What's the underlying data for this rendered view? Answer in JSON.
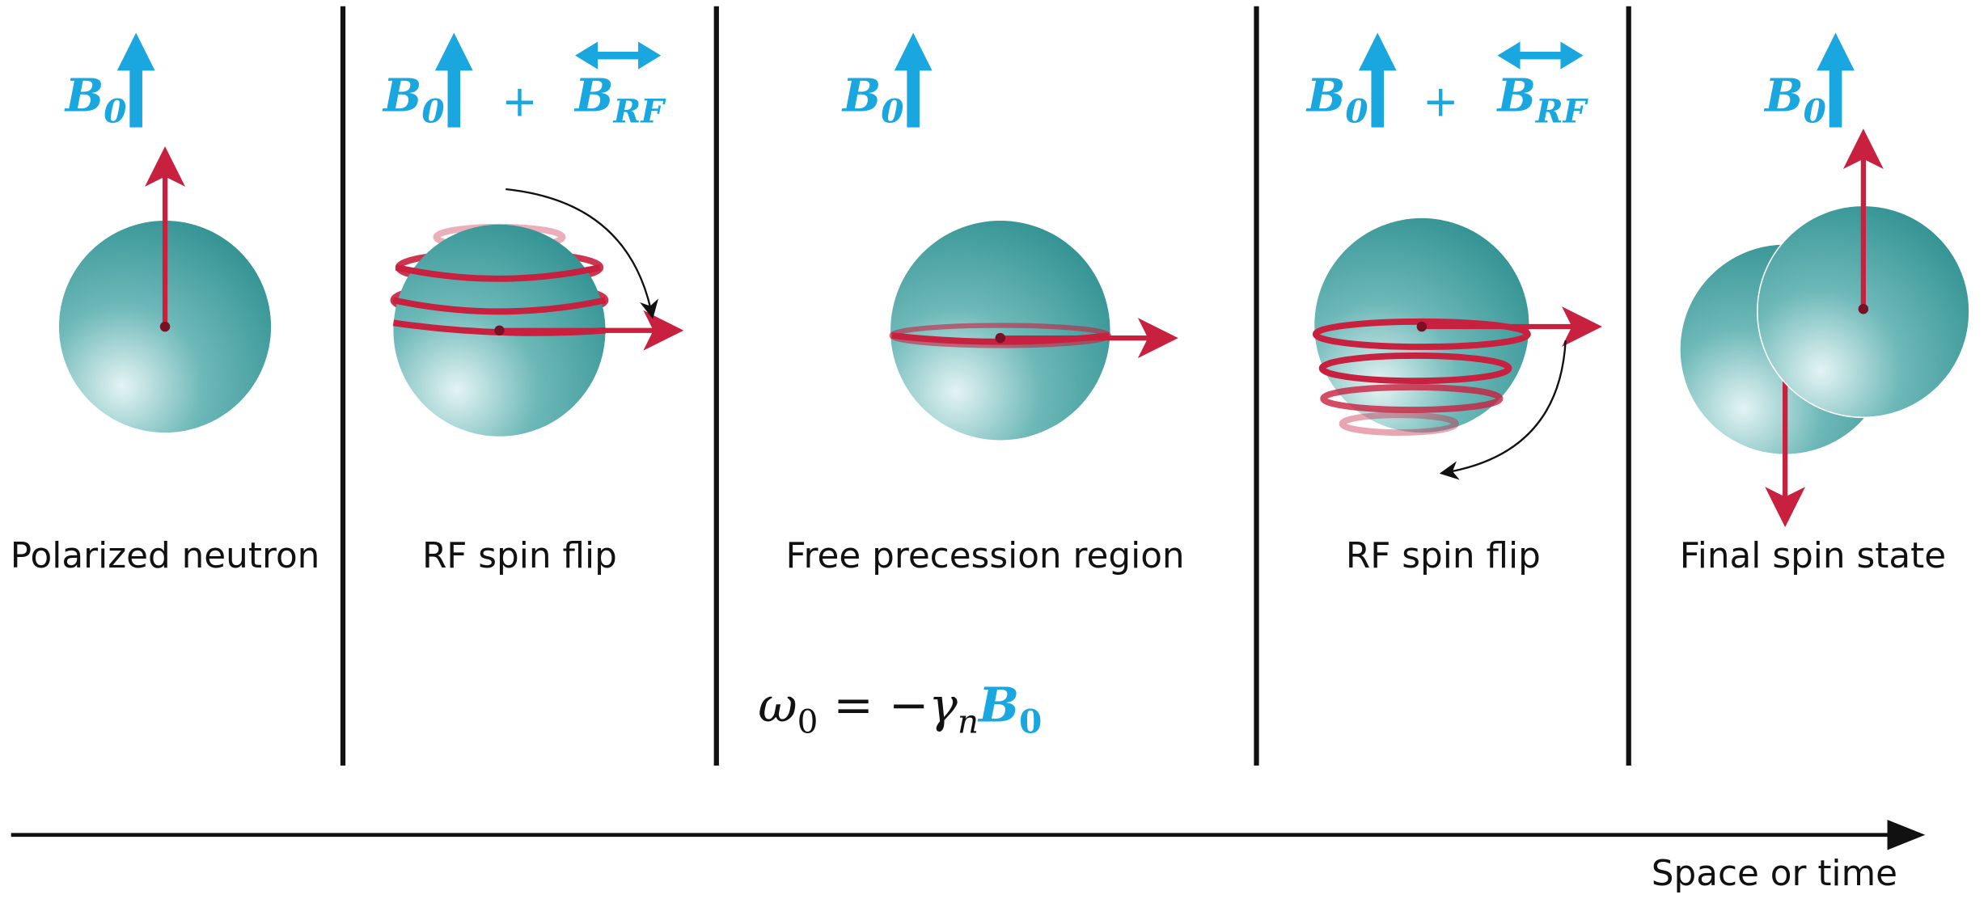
{
  "panels": [
    {
      "label": "Polarized neutron",
      "field": [
        {
          "symbol": "B",
          "subscript": "0"
        }
      ]
    },
    {
      "label": "RF spin flip",
      "field": [
        {
          "symbol": "B",
          "subscript": "0"
        },
        {
          "symbol": "B",
          "subscript": "RF"
        }
      ],
      "operator": "+"
    },
    {
      "label": "Free precession region",
      "field": [
        {
          "symbol": "B",
          "subscript": "0"
        }
      ]
    },
    {
      "label": "RF spin flip",
      "field": [
        {
          "symbol": "B",
          "subscript": "0"
        },
        {
          "symbol": "B",
          "subscript": "RF"
        }
      ],
      "operator": "+"
    },
    {
      "label": "Final spin state",
      "field": [
        {
          "symbol": "B",
          "subscript": "0"
        }
      ]
    }
  ],
  "equation": {
    "omega": "ω",
    "omega_sub": "0",
    "middle": " = −γ",
    "gamma_sub": "n",
    "field_symbol": "B",
    "field_sub": "0"
  },
  "axis_label": "Space or time"
}
